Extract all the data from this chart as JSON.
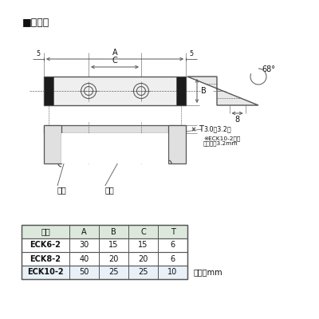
{
  "title": "■寸法図",
  "bg_color": "#ffffff",
  "table_header": [
    "品番",
    "A",
    "B",
    "C",
    "T"
  ],
  "table_rows": [
    [
      "ECK6-2",
      "30",
      "15",
      "15",
      "6"
    ],
    [
      "ECK8-2",
      "40",
      "20",
      "20",
      "6"
    ],
    [
      "ECK10-2",
      "50",
      "25",
      "25",
      "10"
    ]
  ],
  "unit_text": "単位：mm",
  "note_line1": "※ECK10-2のみ",
  "note_line2": "銃板厚み3.2mm",
  "dim_label_3": "3.0（3.2）",
  "dim_8": "8",
  "angle_68": "68°",
  "label_kouban1": "銃板",
  "label_kouban2": "銃板",
  "label_A": "A",
  "label_B": "B",
  "label_C": "C",
  "label_T": "T",
  "label_5_left": "5",
  "label_5_right": "5",
  "table_bg_header": "#dce8dc",
  "table_bg_last": "#e8f0f8",
  "line_color": "#555555",
  "text_color": "#111111"
}
